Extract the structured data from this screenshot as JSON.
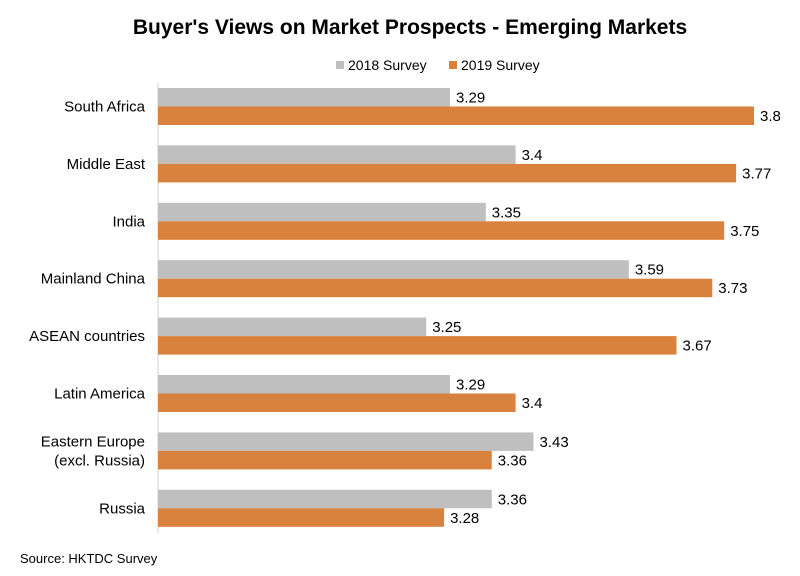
{
  "chart_data": {
    "type": "bar",
    "orientation": "horizontal",
    "title": "Buyer's Views on Market Prospects - Emerging Markets",
    "categories": [
      [
        "South Africa"
      ],
      [
        "Middle East"
      ],
      [
        "India"
      ],
      [
        "Mainland China"
      ],
      [
        "ASEAN countries"
      ],
      [
        "Latin America"
      ],
      [
        "Eastern Europe",
        "(excl. Russia)"
      ],
      [
        "Russia"
      ]
    ],
    "series": [
      {
        "name": "2018 Survey",
        "color": "#bfbfbf",
        "values": [
          3.29,
          3.4,
          3.35,
          3.59,
          3.25,
          3.29,
          3.43,
          3.36
        ]
      },
      {
        "name": "2019 Survey",
        "color": "#d9823e",
        "values": [
          3.8,
          3.77,
          3.75,
          3.73,
          3.67,
          3.4,
          3.36,
          3.28
        ]
      }
    ],
    "legend_position": "top",
    "grid": false,
    "source": "Source: HKTDC Survey"
  }
}
